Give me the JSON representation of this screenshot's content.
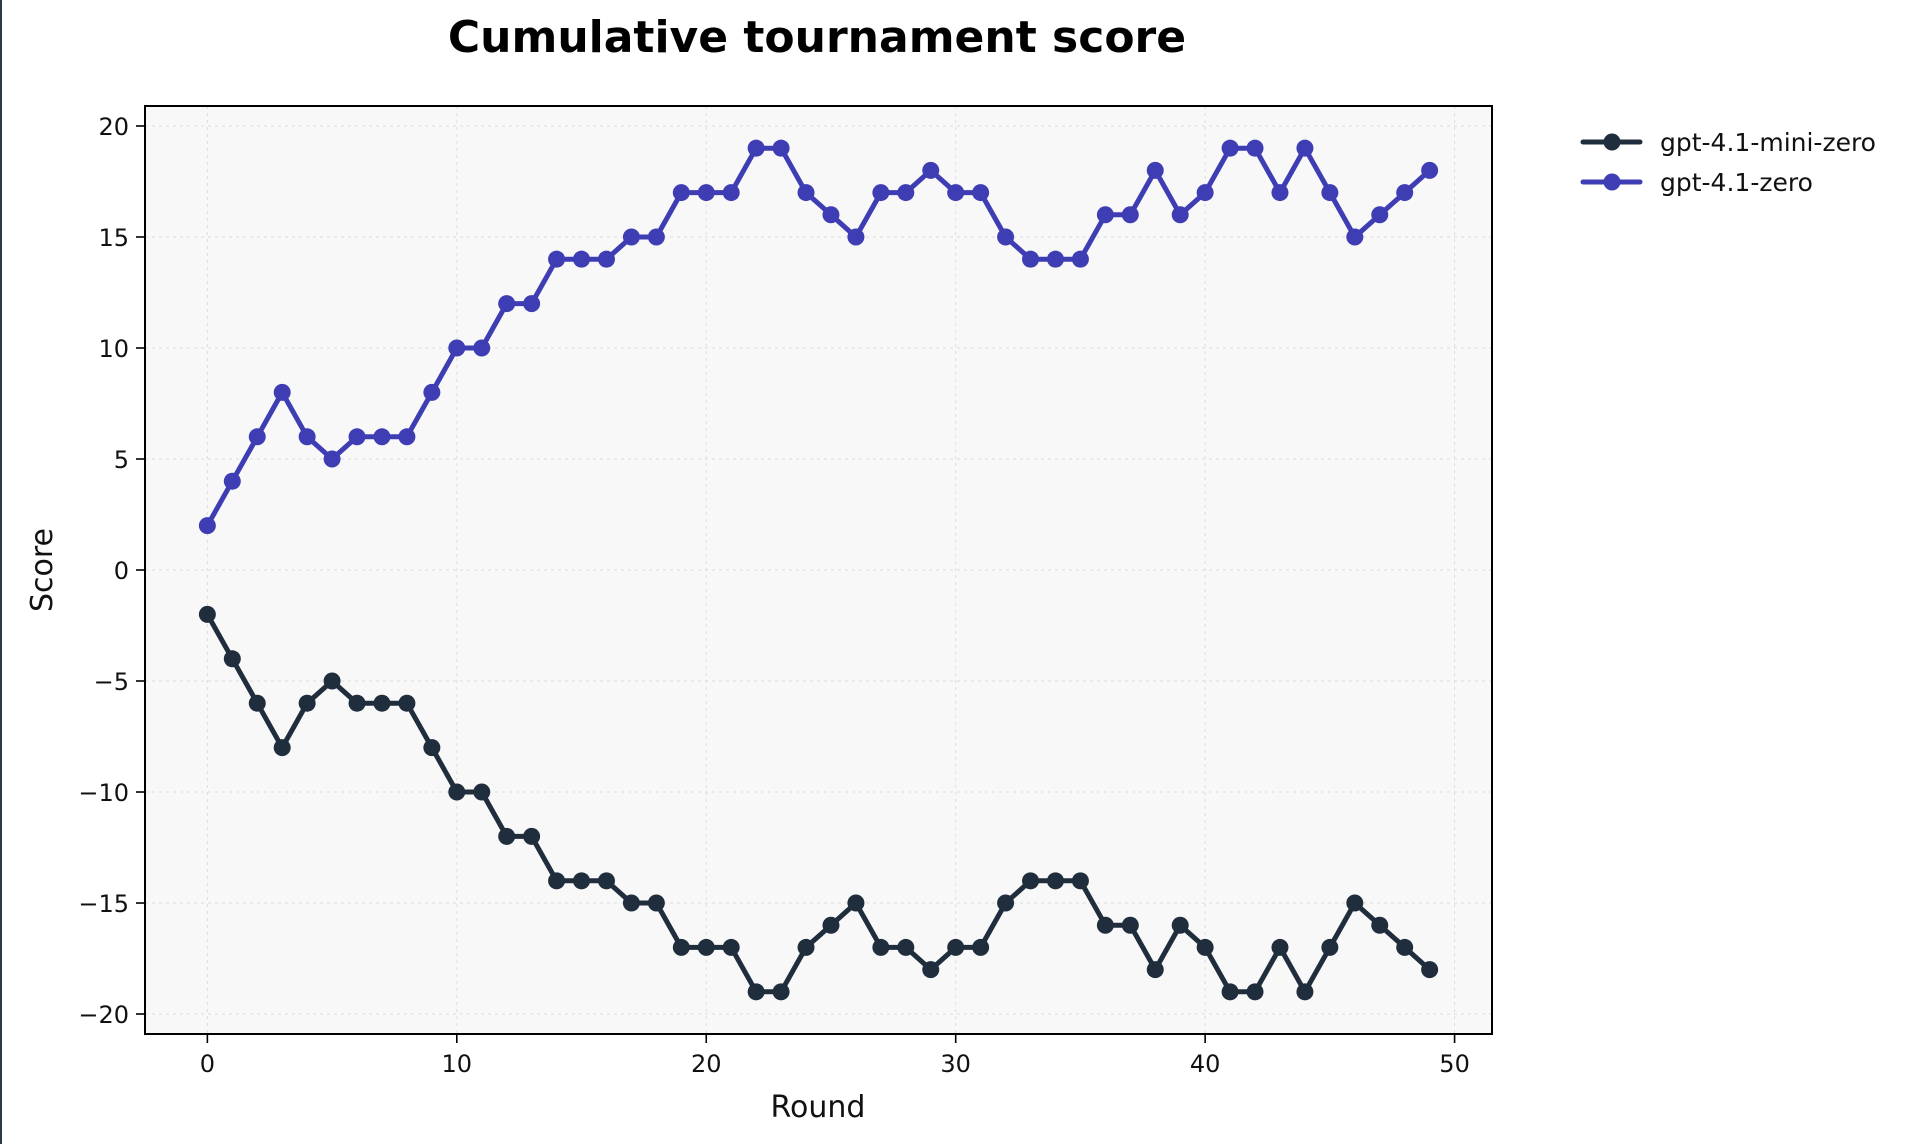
{
  "chart_data": {
    "type": "line",
    "title": "Cumulative tournament score",
    "xlabel": "Round",
    "ylabel": "Score",
    "xlim": [
      -2.5,
      51.5
    ],
    "ylim": [
      -20.9,
      20.9
    ],
    "xticks": [
      0,
      10,
      20,
      30,
      40,
      50
    ],
    "yticks": [
      20,
      15,
      10,
      5,
      0,
      -5,
      -10,
      -15,
      -20
    ],
    "ytick_labels": [
      "20",
      "15",
      "10",
      "5",
      "0",
      "−5",
      "−10",
      "−15",
      "−20"
    ],
    "grid": true,
    "legend": "outside-right",
    "x": [
      0,
      1,
      2,
      3,
      4,
      5,
      6,
      7,
      8,
      9,
      10,
      11,
      12,
      13,
      14,
      15,
      16,
      17,
      18,
      19,
      20,
      21,
      22,
      23,
      24,
      25,
      26,
      27,
      28,
      29,
      30,
      31,
      32,
      33,
      34,
      35,
      36,
      37,
      38,
      39,
      40,
      41,
      42,
      43,
      44,
      45,
      46,
      47,
      48,
      49
    ],
    "series": [
      {
        "name": "gpt-4.1-mini-zero",
        "color": "#1f2d3d",
        "values": [
          -2,
          -4,
          -6,
          -8,
          -6,
          -5,
          -6,
          -6,
          -6,
          -8,
          -10,
          -10,
          -12,
          -12,
          -14,
          -14,
          -14,
          -15,
          -15,
          -17,
          -17,
          -17,
          -19,
          -19,
          -17,
          -16,
          -15,
          -17,
          -17,
          -18,
          -17,
          -17,
          -15,
          -14,
          -14,
          -14,
          -16,
          -16,
          -18,
          -16,
          -17,
          -19,
          -19,
          -17,
          -19,
          -17,
          -15,
          -16,
          -17,
          -18
        ]
      },
      {
        "name": "gpt-4.1-zero",
        "color": "#3f3db3",
        "values": [
          2,
          4,
          6,
          8,
          6,
          5,
          6,
          6,
          6,
          8,
          10,
          10,
          12,
          12,
          14,
          14,
          14,
          15,
          15,
          17,
          17,
          17,
          19,
          19,
          17,
          16,
          15,
          17,
          17,
          18,
          17,
          17,
          15,
          14,
          14,
          14,
          16,
          16,
          18,
          16,
          17,
          19,
          19,
          17,
          19,
          17,
          15,
          16,
          17,
          18
        ]
      }
    ]
  }
}
